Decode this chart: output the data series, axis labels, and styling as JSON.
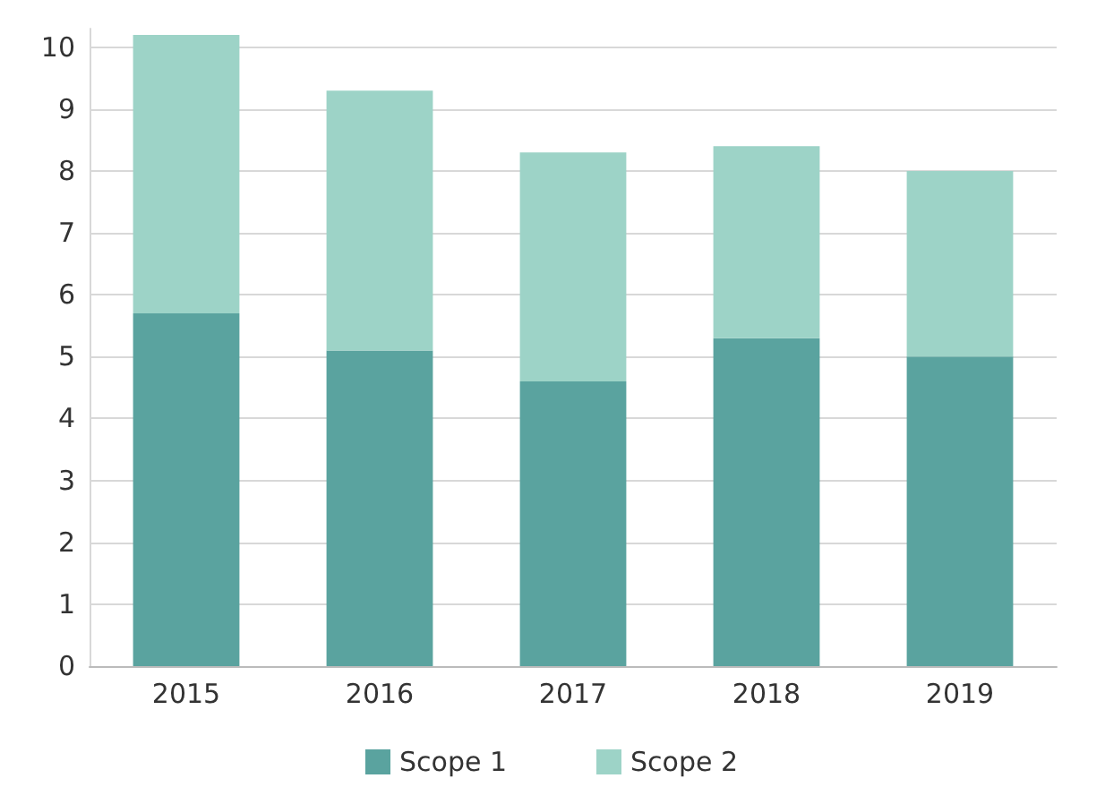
{
  "chart_data": {
    "type": "bar",
    "stacked": true,
    "categories": [
      "2015",
      "2016",
      "2017",
      "2018",
      "2019"
    ],
    "series": [
      {
        "name": "Scope 1",
        "color": "#5aa39f",
        "values": [
          5.7,
          5.1,
          4.6,
          5.3,
          5.0
        ]
      },
      {
        "name": "Scope 2",
        "color": "#9dd3c7",
        "values": [
          4.5,
          4.2,
          3.7,
          3.1,
          3.0
        ]
      }
    ],
    "ylim": [
      0,
      10.3
    ],
    "yticks": [
      0,
      1,
      2,
      3,
      4,
      5,
      6,
      7,
      8,
      9,
      10
    ],
    "grid": "y",
    "legend": "bottom"
  }
}
